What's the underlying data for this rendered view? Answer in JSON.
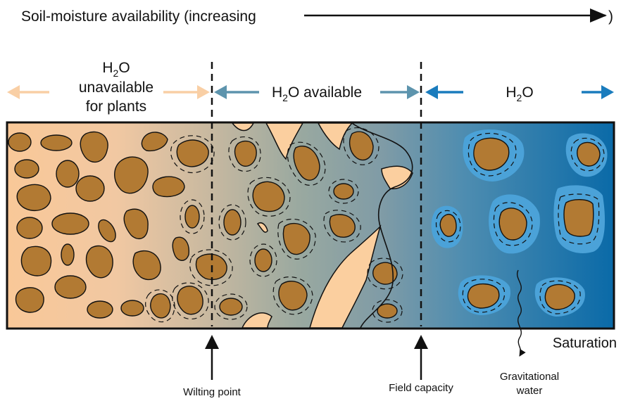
{
  "header": {
    "title": "Soil-moisture availability (increasing",
    "title_close": ")"
  },
  "zones": {
    "unavailable": {
      "symbol": "H",
      "sub": "2",
      "symbol_end": "O",
      "line1": "unavailable",
      "line2": "for plants"
    },
    "available": {
      "symbol": "H",
      "sub": "2",
      "rest": "O available"
    },
    "saturated": {
      "symbol": "H",
      "sub": "2",
      "symbol_end": "O"
    }
  },
  "markers": {
    "wilting_point": "Wilting point",
    "field_capacity": "Field capacity",
    "saturation": "Saturation",
    "gravitational_line1": "Gravitational",
    "gravitational_line2": "water"
  },
  "colors": {
    "dry": "#f8c99a",
    "mid": "#8fa5a0",
    "wet": "#0a6aa8",
    "particle": "#b27a33",
    "water_halo": "#4ba2d8",
    "arrow_dry": "#f9cfa5",
    "arrow_mid": "#5d94ad",
    "arrow_wet": "#1a7cbd"
  }
}
